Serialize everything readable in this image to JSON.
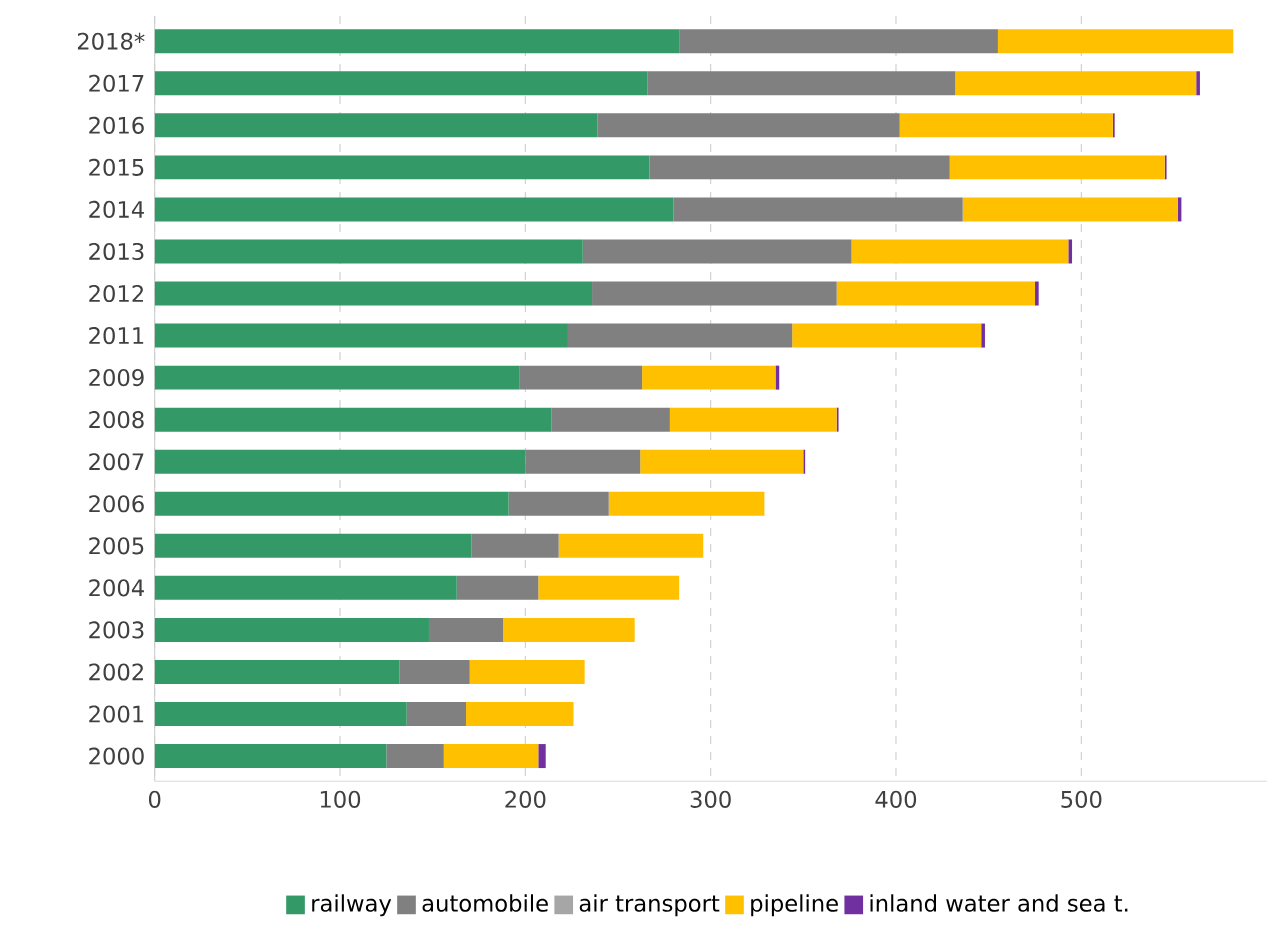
{
  "chart_data": {
    "type": "bar",
    "orientation": "horizontal",
    "stacked": true,
    "categories": [
      "2018*",
      "2017",
      "2016",
      "2015",
      "2014",
      "2013",
      "2012",
      "2011",
      "2009",
      "2008",
      "2007",
      "2006",
      "2005",
      "2004",
      "2003",
      "2002",
      "2001",
      "2000"
    ],
    "series": [
      {
        "name": "railway",
        "color": "#339966",
        "values": [
          283,
          266,
          239,
          267,
          280,
          231,
          236,
          223,
          197,
          214,
          200,
          191,
          171,
          163,
          148,
          132,
          136,
          125
        ]
      },
      {
        "name": "automobile",
        "color": "#808080",
        "values": [
          172,
          166,
          163,
          162,
          156,
          145,
          132,
          121,
          66,
          64,
          62,
          54,
          47,
          44,
          40,
          38,
          32,
          31
        ]
      },
      {
        "name": "air transport",
        "color": "#a6a6a6",
        "values": [
          0,
          0,
          0,
          0,
          0,
          0,
          0,
          0,
          0,
          0,
          0,
          0,
          0,
          0,
          0,
          0,
          0,
          0
        ]
      },
      {
        "name": "pipeline",
        "color": "#ffc000",
        "values": [
          127,
          130,
          115,
          116,
          116,
          117,
          107,
          102,
          72,
          90,
          88,
          84,
          78,
          76,
          71,
          62,
          58,
          51
        ]
      },
      {
        "name": "inland water and sea t.",
        "color": "#7030a0",
        "values": [
          0,
          2,
          1,
          1,
          2,
          2,
          2,
          2,
          2,
          1,
          1,
          0,
          0,
          0,
          0,
          0,
          0,
          4
        ]
      }
    ],
    "xlim": [
      0,
      600
    ],
    "xticks": [
      0,
      100,
      200,
      300,
      400,
      500
    ],
    "grid": "x",
    "legend": "bottom"
  }
}
